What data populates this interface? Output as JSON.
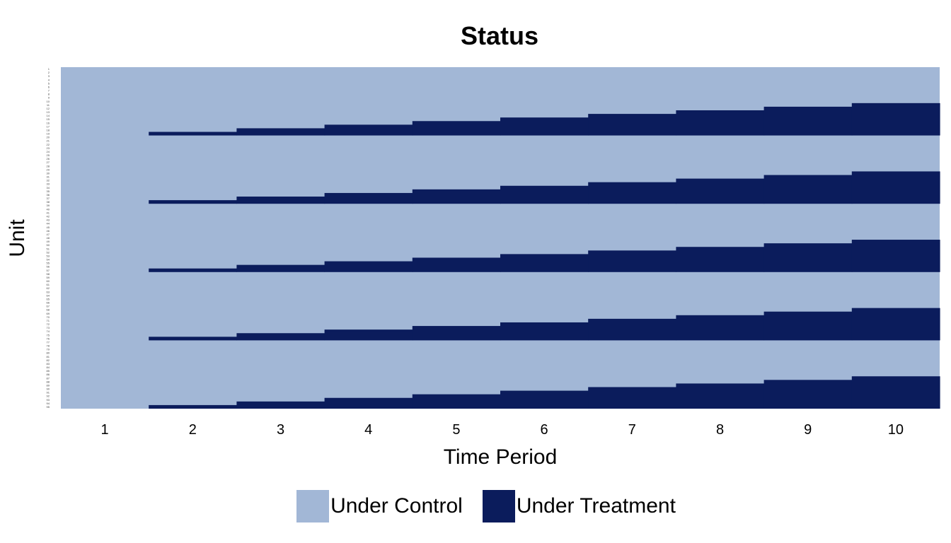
{
  "chart_data": {
    "type": "heatmap",
    "title": "Status",
    "xlabel": "Time Period",
    "ylabel": "Unit",
    "x": [
      1,
      2,
      3,
      4,
      5,
      6,
      7,
      8,
      9,
      10
    ],
    "y_tick_labels_count": 95,
    "cohort_structure": {
      "cycles": 5,
      "units_per_cycle": 19,
      "description": "Within each block of 19 units, the last units are treated; starting at period 2, one additional unit becomes treated each period until 9 units are treated at period 10."
    },
    "treated_units_per_cycle_by_period": [
      0,
      1,
      2,
      3,
      4,
      5,
      6,
      7,
      8,
      9
    ],
    "categories": [
      "Under Control",
      "Under Treatment"
    ],
    "legend": {
      "position": "bottom",
      "items": [
        {
          "label": "Under Control",
          "color": "#a2b7d6"
        },
        {
          "label": "Under Treatment",
          "color": "#0b1c5c"
        }
      ]
    },
    "colors": {
      "control": "#a2b7d6",
      "treatment": "#0b1c5c"
    },
    "grid": false
  }
}
